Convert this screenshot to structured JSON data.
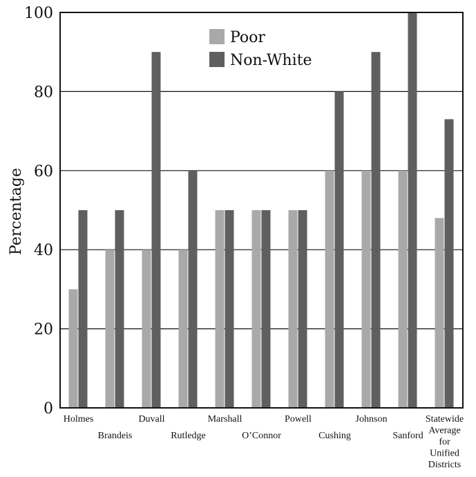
{
  "chart_data": {
    "type": "bar",
    "title": "",
    "xlabel": "",
    "ylabel": "Percentage",
    "ylim": [
      0,
      100
    ],
    "yticks": [
      0,
      20,
      40,
      60,
      80,
      100
    ],
    "grid": true,
    "legend_position": "top-center",
    "categories": [
      [
        "Holmes"
      ],
      [
        "Brandeis"
      ],
      [
        "Duvall"
      ],
      [
        "Rutledge"
      ],
      [
        "Marshall"
      ],
      [
        "O’Connor"
      ],
      [
        "Powell"
      ],
      [
        "Cushing"
      ],
      [
        "Johnson"
      ],
      [
        "Sanford"
      ],
      [
        "Statewide",
        "Average",
        "for",
        "Unified",
        "Districts"
      ]
    ],
    "series": [
      {
        "name": "Poor",
        "color": "#a9a9a9",
        "values": [
          30,
          40,
          40,
          40,
          50,
          50,
          50,
          60,
          60,
          60,
          48
        ]
      },
      {
        "name": "Non-White",
        "color": "#5f5f5f",
        "values": [
          50,
          50,
          90,
          60,
          50,
          50,
          50,
          80,
          90,
          100,
          73
        ]
      }
    ]
  }
}
